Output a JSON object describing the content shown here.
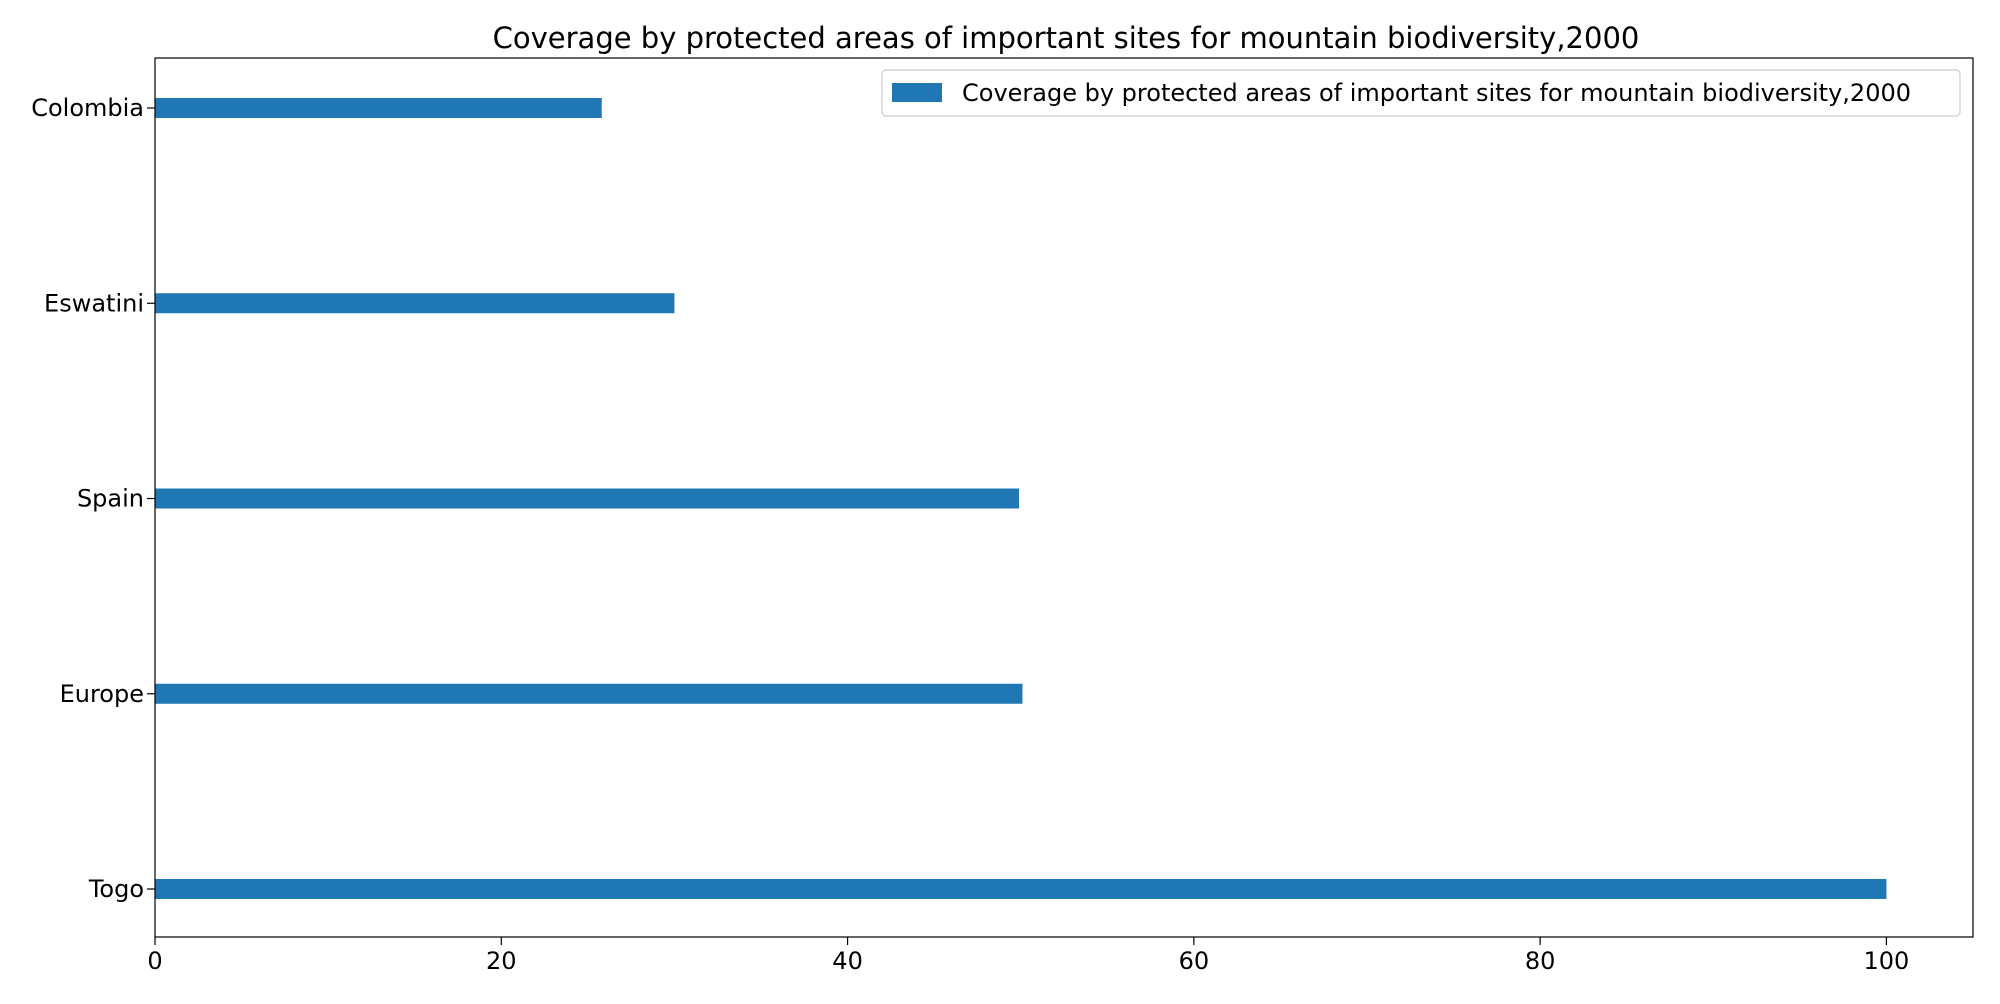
{
  "chart_data": {
    "type": "bar",
    "orientation": "horizontal",
    "title": "Coverage by protected areas of important sites for mountain biodiversity,2000",
    "xlabel": "",
    "ylabel": "",
    "categories": [
      "Togo",
      "Europe",
      "Spain",
      "Eswatini",
      "Colombia"
    ],
    "series": [
      {
        "name": "Coverage by protected areas of important sites for mountain biodiversity,2000",
        "values": [
          100,
          50.1,
          49.9,
          30,
          25.8
        ],
        "color": "#1f77b4"
      }
    ],
    "xlim": [
      0,
      105
    ],
    "xticks": [
      0,
      20,
      40,
      60,
      80,
      100
    ],
    "grid": false,
    "legend": {
      "placement": "top-right"
    }
  }
}
